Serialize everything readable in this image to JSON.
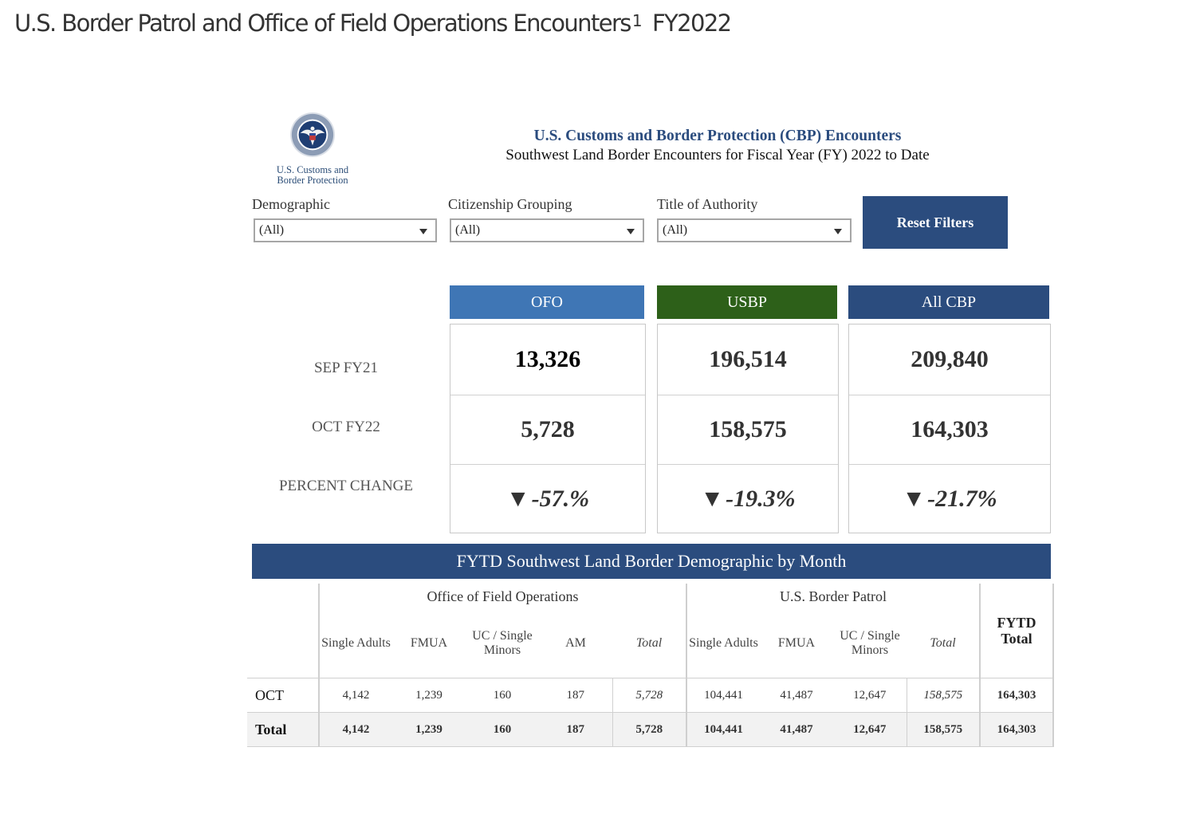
{
  "page": {
    "title": "U.S. Border Patrol and Office of Field Operations Encounters",
    "footnote": "1",
    "fiscal_year": "FY2022"
  },
  "logo": {
    "line1": "U.S. Customs and",
    "line2": "Border Protection"
  },
  "header": {
    "title": "U.S. Customs and Border Protection (CBP) Encounters",
    "subtitle": "Southwest Land Border Encounters for Fiscal Year (FY) 2022 to Date"
  },
  "filters": {
    "demographic": {
      "label": "Demographic",
      "value": "(All)"
    },
    "citizenship": {
      "label": "Citizenship Grouping",
      "value": "(All)"
    },
    "authority": {
      "label": "Title of Authority",
      "value": "(All)"
    },
    "reset_label": "Reset Filters"
  },
  "summary": {
    "row_labels": [
      "SEP FY21",
      "OCT FY22",
      "PERCENT CHANGE"
    ],
    "trend_symbol": "▼",
    "columns": [
      {
        "name": "OFO",
        "color": "#3f76b5",
        "sep": "13,326",
        "oct": "5,728",
        "change": "-57.%"
      },
      {
        "name": "USBP",
        "color": "#2d6019",
        "sep": "196,514",
        "oct": "158,575",
        "change": "-19.3%"
      },
      {
        "name": "All CBP",
        "color": "#2b4c7e",
        "sep": "209,840",
        "oct": "164,303",
        "change": "-21.7%"
      }
    ]
  },
  "demographic": {
    "title": "FYTD Southwest Land Border Demographic by Month",
    "groups": {
      "ofo": "Office of Field Operations",
      "usbp": "U.S. Border Patrol"
    },
    "fytd_total_label": "FYTD Total",
    "ofo_columns": [
      "Single Adults",
      "FMUA",
      "UC / Single Minors",
      "AM",
      "Total"
    ],
    "usbp_columns": [
      "Single Adults",
      "FMUA",
      "UC / Single Minors",
      "Total"
    ],
    "rows": [
      {
        "label": "OCT",
        "ofo": [
          "4,142",
          "1,239",
          "160",
          "187",
          "5,728"
        ],
        "usbp": [
          "104,441",
          "41,487",
          "12,647",
          "158,575"
        ],
        "fytd": "164,303"
      },
      {
        "label": "Total",
        "ofo": [
          "4,142",
          "1,239",
          "160",
          "187",
          "5,728"
        ],
        "usbp": [
          "104,441",
          "41,487",
          "12,647",
          "158,575"
        ],
        "fytd": "164,303"
      }
    ]
  }
}
